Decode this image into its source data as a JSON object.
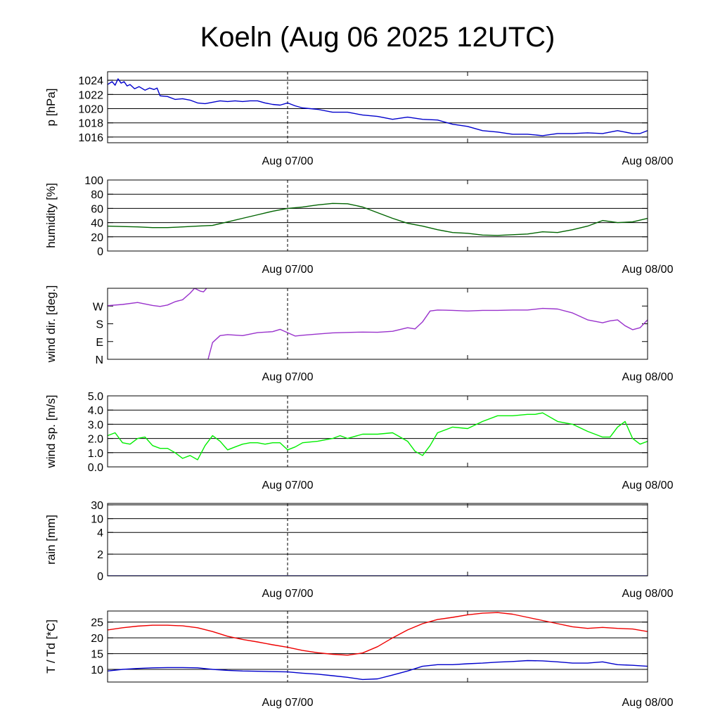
{
  "chart_data": [
    {
      "type": "line",
      "title": "Koeln (Aug 06 2025 12UTC)",
      "ylabel": "p [hPa]",
      "ylim": [
        1015.2,
        1025.2
      ],
      "yticks": [
        1016,
        1018,
        1020,
        1022,
        1024
      ],
      "ytick_labels": [
        "1016",
        "1018",
        "1020",
        "1022",
        "1024"
      ],
      "gridlines": [
        1016,
        1018,
        1020,
        1022,
        1024
      ],
      "xlim": [
        0,
        36
      ],
      "xticks": [
        12,
        36
      ],
      "xtick_labels": [
        "Aug 07/00",
        "Aug 08/00"
      ],
      "minor_xticks": [
        24
      ],
      "vline": 12,
      "series": [
        {
          "color": "#0000cc",
          "x": [
            0,
            0.3,
            0.5,
            0.7,
            0.9,
            1.1,
            1.3,
            1.5,
            1.8,
            2.1,
            2.5,
            2.8,
            3.1,
            3.3,
            3.5,
            4,
            4.5,
            5,
            5.5,
            6,
            6.5,
            7,
            7.5,
            8,
            8.5,
            9,
            9.5,
            10,
            10.5,
            11,
            11.5,
            12,
            12.5,
            13,
            14,
            15,
            16,
            17,
            18,
            19,
            20,
            21,
            22,
            23,
            24,
            25,
            26,
            27,
            28,
            29,
            30,
            31,
            32,
            33,
            34,
            35,
            35.5,
            36
          ],
          "y": [
            1023.4,
            1023.8,
            1023.3,
            1024.2,
            1023.6,
            1023.8,
            1023.2,
            1023.4,
            1022.8,
            1023.1,
            1022.6,
            1022.9,
            1022.7,
            1022.9,
            1021.8,
            1021.7,
            1021.3,
            1021.4,
            1021.2,
            1020.8,
            1020.7,
            1020.9,
            1021.1,
            1021.0,
            1021.1,
            1021.0,
            1021.1,
            1021.1,
            1020.8,
            1020.6,
            1020.5,
            1020.8,
            1020.4,
            1020.1,
            1019.9,
            1019.5,
            1019.5,
            1019.1,
            1018.9,
            1018.5,
            1018.8,
            1018.5,
            1018.4,
            1017.8,
            1017.5,
            1016.9,
            1016.7,
            1016.4,
            1016.4,
            1016.2,
            1016.5,
            1016.5,
            1016.6,
            1016.5,
            1016.9,
            1016.5,
            1016.5,
            1016.9
          ]
        }
      ]
    },
    {
      "type": "line",
      "ylabel": "humidity [%]",
      "ylim": [
        0,
        100
      ],
      "yticks": [
        0,
        20,
        40,
        60,
        80,
        100
      ],
      "ytick_labels": [
        "0",
        "20",
        "40",
        "60",
        "80",
        "100"
      ],
      "gridlines": [
        20,
        40,
        60,
        80
      ],
      "xlim": [
        0,
        36
      ],
      "xticks": [
        12,
        36
      ],
      "xtick_labels": [
        "Aug 07/00",
        "Aug 08/00"
      ],
      "minor_xticks": [
        24
      ],
      "vline": 12,
      "series": [
        {
          "color": "#006400",
          "x": [
            0,
            1,
            2,
            3,
            4,
            5,
            6,
            7,
            8,
            9,
            10,
            11,
            12,
            13,
            14,
            15,
            16,
            17,
            18,
            19,
            20,
            21,
            22,
            23,
            24,
            25,
            26,
            27,
            28,
            29,
            30,
            31,
            32,
            33,
            34,
            35,
            36
          ],
          "y": [
            35,
            34.5,
            34,
            33,
            33,
            34,
            35,
            36,
            41,
            46,
            51,
            56,
            60,
            62,
            65,
            67,
            66.5,
            62,
            54,
            46,
            39,
            35,
            30,
            26,
            25,
            22.5,
            22,
            23,
            24,
            27,
            26,
            30,
            35,
            43,
            40,
            41,
            46
          ]
        }
      ]
    },
    {
      "type": "line",
      "ylabel": "wind dir. [deg.]",
      "ylim": [
        0,
        360
      ],
      "yticks": [
        0,
        90,
        180,
        270
      ],
      "ytick_labels": [
        "N",
        "E",
        "S",
        "W"
      ],
      "gridlines": [],
      "xlim": [
        0,
        36
      ],
      "xticks": [
        12,
        36
      ],
      "xtick_labels": [
        "Aug 07/00",
        "Aug 08/00"
      ],
      "minor_xticks": [
        24
      ],
      "vline": 12,
      "series": [
        {
          "color": "#9932cc",
          "x": [
            0,
            1,
            2,
            3,
            3.5,
            4,
            4.5,
            5,
            5.5,
            5.8,
            6.2,
            6.4,
            6.6
          ],
          "y": [
            272,
            278,
            288,
            273,
            268,
            275,
            292,
            302,
            335,
            360,
            345,
            342,
            360
          ]
        },
        {
          "color": "#9932cc",
          "x": [
            6.7,
            7,
            7.5,
            8,
            9,
            10,
            11,
            11.5,
            12,
            12.5,
            13,
            14,
            15,
            16,
            17,
            18,
            19,
            20,
            20.5,
            21,
            21.5,
            22,
            23,
            24,
            25,
            26,
            27,
            28,
            29,
            30,
            31,
            32,
            33,
            33.5,
            34,
            34.5,
            35,
            35.5,
            36
          ],
          "y": [
            0,
            85,
            120,
            125,
            120,
            135,
            140,
            152,
            135,
            118,
            122,
            128,
            134,
            136,
            138,
            137,
            142,
            160,
            154,
            190,
            245,
            250,
            248,
            245,
            248,
            248,
            250,
            250,
            258,
            255,
            235,
            200,
            185,
            195,
            200,
            170,
            150,
            160,
            200
          ]
        }
      ]
    },
    {
      "type": "line",
      "ylabel": "wind sp. [m/s]",
      "ylim": [
        0,
        5
      ],
      "yticks": [
        0,
        1,
        2,
        3,
        4,
        5
      ],
      "ytick_labels": [
        "0.0",
        "1.0",
        "2.0",
        "3.0",
        "4.0",
        "5.0"
      ],
      "gridlines": [
        1,
        2,
        3,
        4
      ],
      "xlim": [
        0,
        36
      ],
      "xticks": [
        12,
        36
      ],
      "xtick_labels": [
        "Aug 07/00",
        "Aug 08/00"
      ],
      "minor_xticks": [
        24
      ],
      "vline": 12,
      "series": [
        {
          "color": "#00ee00",
          "x": [
            0,
            0.5,
            1,
            1.5,
            2,
            2.5,
            3,
            3.5,
            4,
            4.5,
            5,
            5.5,
            6,
            6.5,
            7,
            7.5,
            8,
            8.5,
            9,
            9.5,
            10,
            10.5,
            11,
            11.5,
            12,
            12.5,
            13,
            14,
            15,
            15.5,
            16,
            17,
            18,
            19,
            20,
            20.5,
            21,
            21.5,
            22,
            23,
            24,
            25,
            26,
            27,
            28,
            28.5,
            29,
            30,
            31,
            32,
            33,
            33.5,
            34,
            34.5,
            35,
            35.5,
            36
          ],
          "y": [
            2.2,
            2.4,
            1.7,
            1.6,
            2.0,
            2.1,
            1.5,
            1.3,
            1.3,
            1.0,
            0.6,
            0.8,
            0.5,
            1.5,
            2.2,
            1.8,
            1.2,
            1.4,
            1.6,
            1.7,
            1.7,
            1.6,
            1.7,
            1.7,
            1.2,
            1.4,
            1.7,
            1.8,
            2.0,
            2.2,
            2.0,
            2.3,
            2.3,
            2.4,
            1.8,
            1.1,
            0.8,
            1.5,
            2.4,
            2.8,
            2.7,
            3.2,
            3.6,
            3.6,
            3.7,
            3.7,
            3.8,
            3.2,
            3.0,
            2.5,
            2.1,
            2.1,
            2.8,
            3.2,
            2.0,
            1.6,
            1.8
          ]
        }
      ]
    },
    {
      "type": "line",
      "ylabel": "rain [mm]",
      "ylim": [
        0,
        30
      ],
      "yticks": [
        0,
        2,
        4,
        10,
        30
      ],
      "ytick_labels": [
        "0",
        "2",
        "4",
        "10",
        "30"
      ],
      "gridlines": [
        2,
        4,
        10,
        30
      ],
      "xlim": [
        0,
        36
      ],
      "xticks": [
        12,
        36
      ],
      "xtick_labels": [
        "Aug 07/00",
        "Aug 08/00"
      ],
      "minor_xticks": [
        24
      ],
      "vline": 12,
      "series": [
        {
          "color": "#0000cc",
          "x": [
            0,
            36
          ],
          "y": [
            0,
            0
          ]
        }
      ]
    },
    {
      "type": "line",
      "ylabel": "T / Td [*C]",
      "ylim": [
        6,
        28.5
      ],
      "yticks": [
        10,
        15,
        20,
        25
      ],
      "ytick_labels": [
        "10",
        "15",
        "20",
        "25"
      ],
      "gridlines": [
        10,
        15,
        20,
        25
      ],
      "xlim": [
        0,
        36
      ],
      "xticks": [
        12,
        36
      ],
      "xtick_labels": [
        "Aug 07/00",
        "Aug 08/00"
      ],
      "minor_xticks": [
        24
      ],
      "vline": 12,
      "series": [
        {
          "color": "#ee0000",
          "x": [
            0,
            1,
            2,
            3,
            4,
            5,
            6,
            7,
            8,
            9,
            10,
            11,
            12,
            13,
            14,
            15,
            16,
            17,
            18,
            19,
            20,
            21,
            22,
            23,
            24,
            25,
            26,
            27,
            28,
            29,
            30,
            31,
            32,
            33,
            34,
            35,
            36
          ],
          "y": [
            22.5,
            23.2,
            23.7,
            24.0,
            24.0,
            23.8,
            23.2,
            22.0,
            20.5,
            19.5,
            18.7,
            17.8,
            17.0,
            16.0,
            15.3,
            14.8,
            14.5,
            15.2,
            17.2,
            20.0,
            22.5,
            24.5,
            25.8,
            26.5,
            27.3,
            27.8,
            28.0,
            27.5,
            26.5,
            25.5,
            24.5,
            23.5,
            23.0,
            23.3,
            23.0,
            22.8,
            22.0
          ]
        },
        {
          "color": "#0000cc",
          "x": [
            0,
            1,
            2,
            3,
            4,
            5,
            6,
            7,
            8,
            9,
            10,
            11,
            12,
            13,
            14,
            15,
            16,
            17,
            18,
            19,
            20,
            21,
            22,
            23,
            24,
            25,
            26,
            27,
            28,
            29,
            30,
            31,
            32,
            33,
            34,
            35,
            36
          ],
          "y": [
            9.5,
            10.0,
            10.3,
            10.5,
            10.6,
            10.6,
            10.5,
            10.0,
            9.7,
            9.5,
            9.4,
            9.3,
            9.2,
            8.8,
            8.5,
            8.0,
            7.5,
            6.8,
            7.0,
            8.2,
            9.5,
            11.0,
            11.5,
            11.5,
            11.8,
            12.0,
            12.3,
            12.5,
            12.8,
            12.7,
            12.4,
            12.0,
            12.0,
            12.4,
            11.5,
            11.3,
            11.0
          ]
        }
      ]
    }
  ]
}
